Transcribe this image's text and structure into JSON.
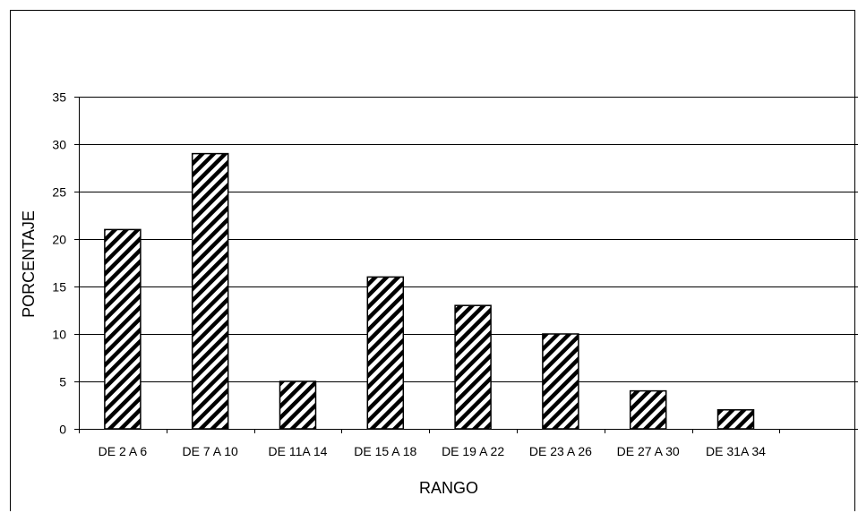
{
  "chart_data": {
    "type": "bar",
    "categories": [
      "DE 2 A  6",
      "DE 7 A  10",
      "DE 11A  14",
      "DE 15 A  18",
      "DE 19 A  22",
      "DE 23 A  26",
      "DE 27 A  30",
      "DE 31A  34",
      ""
    ],
    "values": [
      21,
      29,
      5,
      16,
      13,
      10,
      4,
      2,
      null
    ],
    "title": "",
    "xlabel": "RANGO",
    "ylabel": "PORCENTAJE",
    "ylim": [
      0,
      35
    ],
    "yticks": [
      0,
      5,
      10,
      15,
      20,
      25,
      30,
      35
    ],
    "grid": true,
    "legend": "none",
    "bar_fill": "diagonal-hatch",
    "colors": {
      "bar_stroke": "#000000",
      "hatch": "#000000",
      "background": "#ffffff",
      "grid": "#000000"
    }
  }
}
